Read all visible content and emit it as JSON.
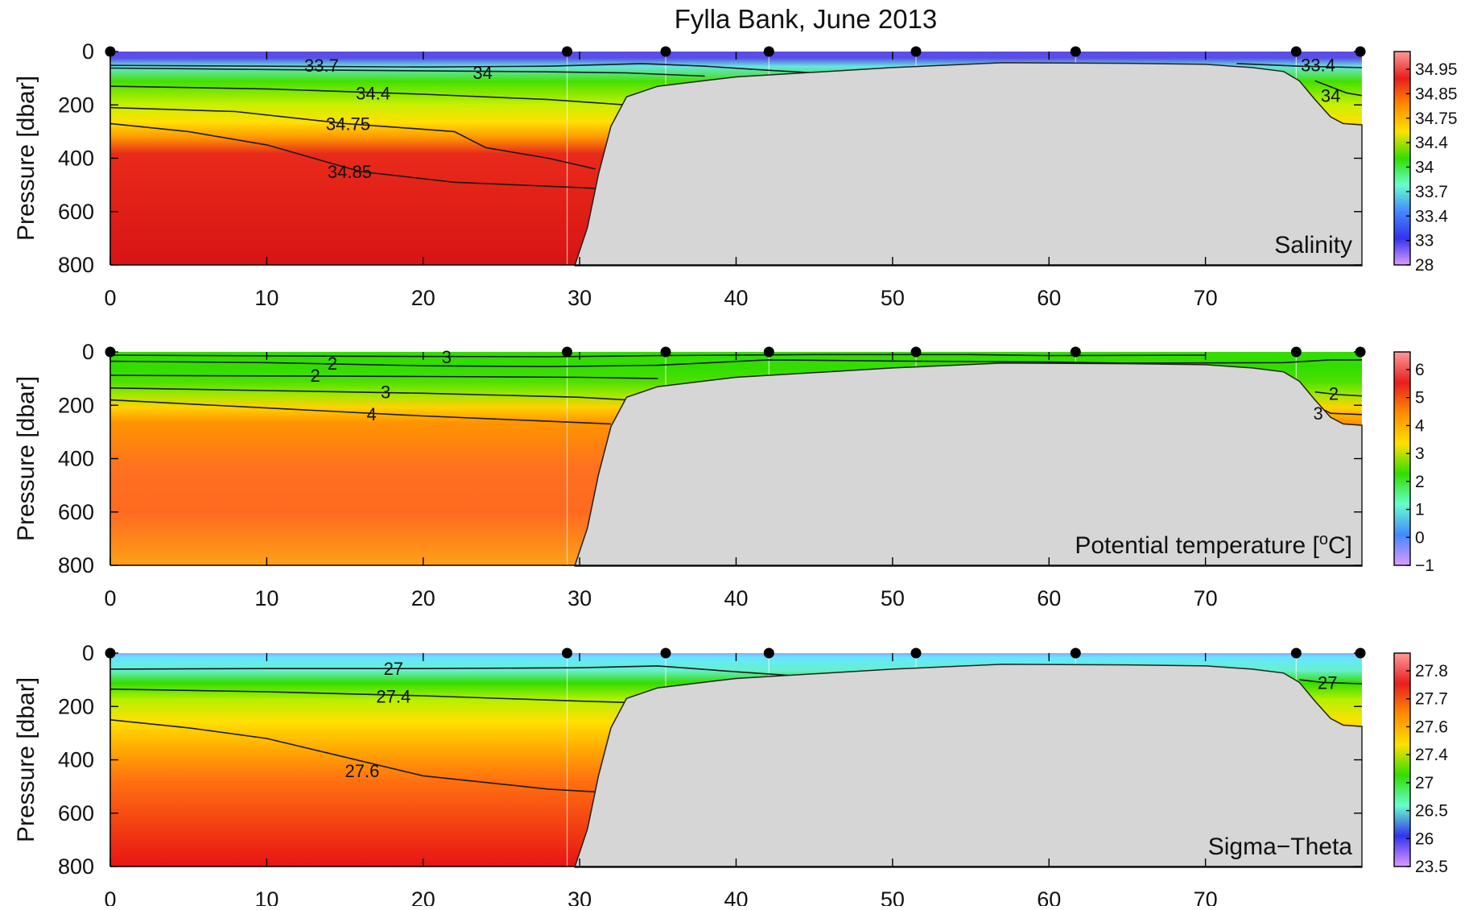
{
  "chart_data": {
    "title": "Fylla Bank, June 2013",
    "type": "heatmap",
    "x": {
      "range": [
        0,
        80
      ],
      "ticks": [
        0,
        10,
        20,
        30,
        40,
        50,
        60,
        70
      ],
      "tick_labels": [
        "0",
        "10",
        "20",
        "30",
        "40",
        "50",
        "60",
        "70"
      ]
    },
    "y": {
      "label": "Pressure [dbar]",
      "range": [
        0,
        800
      ],
      "inverted": true,
      "ticks": [
        0,
        200,
        400,
        600,
        800
      ],
      "tick_labels": [
        "0",
        "200",
        "400",
        "600",
        "800"
      ]
    },
    "stations_x": [
      0,
      29.2,
      35.5,
      42.1,
      51.5,
      61.7,
      75.8,
      79.9
    ],
    "bathymetry": [
      [
        29.7,
        800
      ],
      [
        30.5,
        660
      ],
      [
        31.2,
        460
      ],
      [
        32.0,
        280
      ],
      [
        33.0,
        170
      ],
      [
        35.0,
        130
      ],
      [
        40.0,
        95
      ],
      [
        50.0,
        60
      ],
      [
        57.0,
        42
      ],
      [
        65.0,
        44
      ],
      [
        70.0,
        48
      ],
      [
        73.0,
        60
      ],
      [
        75.0,
        75
      ],
      [
        76.0,
        110
      ],
      [
        77.0,
        180
      ],
      [
        78.0,
        245
      ],
      [
        78.8,
        270
      ],
      [
        80.0,
        275
      ]
    ],
    "panels": [
      {
        "label": "Salinity",
        "colorbar": {
          "ticks": [
            34.95,
            34.85,
            34.75,
            34.4,
            34,
            33.7,
            33.4,
            33,
            28
          ],
          "tick_labels": [
            "34.95",
            "34.85",
            "34.75",
            "34.4",
            "34",
            "33.7",
            "33.4",
            "33",
            "28"
          ],
          "colors": [
            "#fe9a9a",
            "#e81e1e",
            "#ff8c00",
            "#ffe000",
            "#33dd00",
            "#66ffcc",
            "#4488ff",
            "#3333ee",
            "#dd99ff"
          ]
        },
        "contours": [
          {
            "value": "33.7",
            "label": "33.7",
            "label_x": 13.5,
            "label_y": 52,
            "points": [
              [
                0,
                52
              ],
              [
                10,
                55
              ],
              [
                20,
                58
              ],
              [
                28,
                55
              ],
              [
                34,
                45
              ],
              [
                38,
                55
              ],
              [
                42,
                70
              ],
              [
                45,
                80
              ]
            ]
          },
          {
            "value": "34",
            "label": "34",
            "label_x": 23.8,
            "label_y": 78,
            "points": [
              [
                0,
                62
              ],
              [
                15,
                70
              ],
              [
                28,
                76
              ],
              [
                33,
                80
              ],
              [
                38,
                92
              ]
            ]
          },
          {
            "value": "34.4",
            "label": "34.4",
            "label_x": 16.8,
            "label_y": 155,
            "points": [
              [
                0,
                130
              ],
              [
                10,
                140
              ],
              [
                20,
                160
              ],
              [
                28,
                180
              ],
              [
                33,
                200
              ]
            ]
          },
          {
            "value": "34.75",
            "label": "34.75",
            "label_x": 15.2,
            "label_y": 270,
            "points": [
              [
                0,
                210
              ],
              [
                8,
                225
              ],
              [
                15,
                270
              ],
              [
                22,
                300
              ],
              [
                24,
                360
              ],
              [
                28,
                400
              ],
              [
                31,
                440
              ]
            ]
          },
          {
            "value": "34.85",
            "label": "34.85",
            "label_x": 15.3,
            "label_y": 450,
            "points": [
              [
                0,
                270
              ],
              [
                5,
                300
              ],
              [
                10,
                350
              ],
              [
                16,
                450
              ],
              [
                22,
                490
              ],
              [
                30,
                510
              ],
              [
                31.5,
                515
              ]
            ]
          },
          {
            "value": "33.4",
            "label": "33.4",
            "label_x": 77.2,
            "label_y": 50,
            "points": [
              [
                72,
                45
              ],
              [
                76,
                55
              ],
              [
                80,
                60
              ]
            ]
          },
          {
            "value": "34",
            "label": "34",
            "label_x": 78.0,
            "label_y": 165,
            "points": [
              [
                77,
                110
              ],
              [
                79,
                155
              ],
              [
                80,
                165
              ]
            ]
          }
        ]
      },
      {
        "label": "Potential temperature [oC]",
        "colorbar": {
          "ticks": [
            6,
            5,
            4,
            3,
            2,
            1,
            0,
            -1
          ],
          "tick_labels": [
            "6",
            "5",
            "4",
            "3",
            "2",
            "1",
            "0",
            "−1"
          ],
          "colors": [
            "#fe9a9a",
            "#e81e1e",
            "#ff8c00",
            "#ffe000",
            "#33dd00",
            "#66ffcc",
            "#4488ff",
            "#dd99ff"
          ]
        },
        "contours": [
          {
            "value": "3",
            "label": "3",
            "label_x": 21.5,
            "label_y": 18,
            "points": [
              [
                0,
                12
              ],
              [
                15,
                16
              ],
              [
                28,
                18
              ],
              [
                35,
                14
              ],
              [
                45,
                10
              ],
              [
                55,
                10
              ],
              [
                60,
                14
              ],
              [
                70,
                12
              ]
            ]
          },
          {
            "value": "2",
            "label": "2",
            "label_x": 14.2,
            "label_y": 42,
            "points": [
              [
                0,
                35
              ],
              [
                10,
                40
              ],
              [
                20,
                52
              ],
              [
                28,
                55
              ],
              [
                35,
                50
              ],
              [
                42,
                30
              ],
              [
                50,
                34
              ],
              [
                60,
                38
              ],
              [
                65,
                42
              ],
              [
                75,
                40
              ],
              [
                78,
                30
              ],
              [
                80,
                30
              ]
            ]
          },
          {
            "value": "2",
            "label": "2",
            "label_x": 13.1,
            "label_y": 88,
            "points": [
              [
                0,
                88
              ],
              [
                10,
                90
              ],
              [
                20,
                92
              ],
              [
                30,
                95
              ],
              [
                35,
                100
              ]
            ]
          },
          {
            "value": "3",
            "label": "3",
            "label_x": 17.6,
            "label_y": 150,
            "points": [
              [
                0,
                135
              ],
              [
                10,
                145
              ],
              [
                20,
                155
              ],
              [
                30,
                170
              ],
              [
                33,
                180
              ]
            ]
          },
          {
            "value": "4",
            "label": "4",
            "label_x": 16.7,
            "label_y": 233,
            "points": [
              [
                0,
                180
              ],
              [
                10,
                210
              ],
              [
                20,
                240
              ],
              [
                28,
                260
              ],
              [
                32,
                270
              ]
            ]
          },
          {
            "value": "2",
            "label": "2",
            "label_x": 78.2,
            "label_y": 155,
            "points": [
              [
                77,
                150
              ],
              [
                78.5,
                160
              ],
              [
                80,
                165
              ]
            ]
          },
          {
            "value": "3",
            "label": "3",
            "label_x": 77.2,
            "label_y": 230,
            "points": [
              [
                77,
                200
              ],
              [
                78,
                230
              ],
              [
                80,
                235
              ]
            ]
          }
        ]
      },
      {
        "label": "Sigma−Theta",
        "colorbar": {
          "ticks": [
            27.8,
            27.7,
            27.6,
            27.4,
            27,
            26.5,
            26,
            23.5
          ],
          "tick_labels": [
            "27.8",
            "27.7",
            "27.6",
            "27.4",
            "27",
            "26.5",
            "26",
            "23.5"
          ],
          "colors": [
            "#fe9a9a",
            "#e81e1e",
            "#ff8c00",
            "#ffe000",
            "#33dd00",
            "#66ffcc",
            "#3333ee",
            "#dd99ff"
          ]
        },
        "contours": [
          {
            "value": "27",
            "label": "27",
            "label_x": 18.1,
            "label_y": 58,
            "points": [
              [
                0,
                60
              ],
              [
                10,
                58
              ],
              [
                20,
                58
              ],
              [
                30,
                55
              ],
              [
                35,
                48
              ],
              [
                40,
                70
              ],
              [
                45,
                90
              ],
              [
                50,
                80
              ],
              [
                60,
                70
              ]
            ]
          },
          {
            "value": "27.4",
            "label": "27.4",
            "label_x": 18.1,
            "label_y": 162,
            "points": [
              [
                0,
                135
              ],
              [
                10,
                145
              ],
              [
                20,
                160
              ],
              [
                30,
                180
              ],
              [
                33,
                185
              ]
            ]
          },
          {
            "value": "27.6",
            "label": "27.6",
            "label_x": 16.1,
            "label_y": 440,
            "points": [
              [
                0,
                250
              ],
              [
                5,
                280
              ],
              [
                10,
                320
              ],
              [
                15,
                390
              ],
              [
                20,
                460
              ],
              [
                28,
                510
              ],
              [
                31,
                520
              ]
            ]
          },
          {
            "value": "27",
            "label": "27",
            "label_x": 77.8,
            "label_y": 110,
            "points": [
              [
                76,
                100
              ],
              [
                77.5,
                110
              ],
              [
                80,
                115
              ]
            ]
          }
        ]
      }
    ]
  }
}
